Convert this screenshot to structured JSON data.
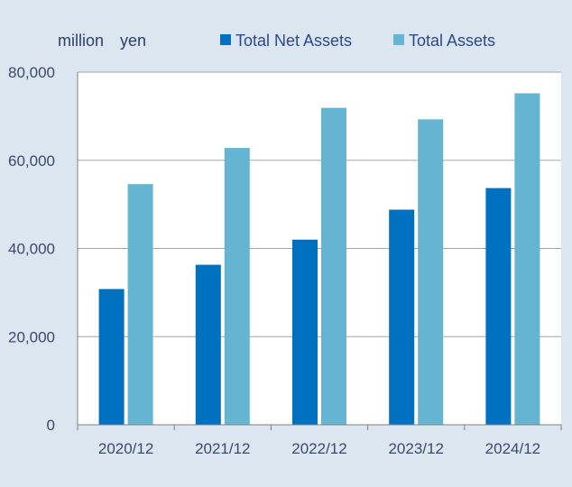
{
  "chart_data": {
    "type": "bar",
    "unit_label": "million　yen",
    "categories": [
      "2020/12",
      "2021/12",
      "2022/12",
      "2023/12",
      "2024/12"
    ],
    "series": [
      {
        "name": "Total Net Assets",
        "color": "#0070c0",
        "values": [
          30800,
          36300,
          42000,
          48800,
          53700
        ]
      },
      {
        "name": "Total Assets",
        "color": "#65b5d2",
        "values": [
          54600,
          62800,
          71900,
          69300,
          75200
        ]
      }
    ],
    "ylim": [
      0,
      80000
    ],
    "yticks": [
      0,
      20000,
      40000,
      60000,
      80000
    ],
    "ytick_labels": [
      "0",
      "20,000",
      "40,000",
      "60,000",
      "80,000"
    ],
    "grid": true,
    "legend_position": "top"
  }
}
